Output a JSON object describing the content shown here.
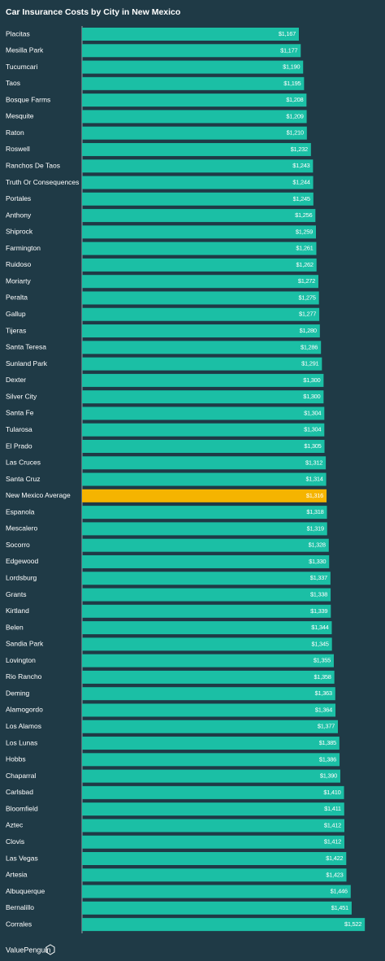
{
  "chart_data": {
    "type": "bar",
    "orientation": "horizontal",
    "title": "Car Insurance Costs by City in New Mexico",
    "footer": "ValuePenguin",
    "categories": [
      "Placitas",
      "Mesilla Park",
      "Tucumcari",
      "Taos",
      "Bosque Farms",
      "Mesquite",
      "Raton",
      "Roswell",
      "Ranchos De Taos",
      "Truth Or Consequences",
      "Portales",
      "Anthony",
      "Shiprock",
      "Farmington",
      "Ruidoso",
      "Moriarty",
      "Peralta",
      "Gallup",
      "Tijeras",
      "Santa Teresa",
      "Sunland Park",
      "Dexter",
      "Silver City",
      "Santa Fe",
      "Tularosa",
      "El Prado",
      "Las Cruces",
      "Santa Cruz",
      "New Mexico Average",
      "Espanola",
      "Mescalero",
      "Socorro",
      "Edgewood",
      "Lordsburg",
      "Grants",
      "Kirtland",
      "Belen",
      "Sandia Park",
      "Lovington",
      "Rio Rancho",
      "Deming",
      "Alamogordo",
      "Los Alamos",
      "Los Lunas",
      "Hobbs",
      "Chaparral",
      "Carlsbad",
      "Bloomfield",
      "Aztec",
      "Clovis",
      "Las Vegas",
      "Artesia",
      "Albuquerque",
      "Bernalillo",
      "Corrales"
    ],
    "values": [
      1167,
      1177,
      1190,
      1195,
      1208,
      1209,
      1210,
      1232,
      1243,
      1244,
      1245,
      1256,
      1259,
      1261,
      1262,
      1272,
      1275,
      1277,
      1280,
      1286,
      1291,
      1300,
      1300,
      1304,
      1304,
      1305,
      1312,
      1314,
      1316,
      1318,
      1319,
      1328,
      1330,
      1337,
      1338,
      1339,
      1344,
      1345,
      1355,
      1358,
      1363,
      1364,
      1377,
      1385,
      1386,
      1390,
      1410,
      1411,
      1412,
      1412,
      1422,
      1423,
      1446,
      1451,
      1522
    ],
    "value_labels": [
      "$1,167",
      "$1,177",
      "$1,190",
      "$1,195",
      "$1,208",
      "$1,209",
      "$1,210",
      "$1,232",
      "$1,243",
      "$1,244",
      "$1,245",
      "$1,256",
      "$1,259",
      "$1,261",
      "$1,262",
      "$1,272",
      "$1,275",
      "$1,277",
      "$1,280",
      "$1,286",
      "$1,291",
      "$1,300",
      "$1,300",
      "$1,304",
      "$1,304",
      "$1,305",
      "$1,312",
      "$1,314",
      "$1,316",
      "$1,318",
      "$1,319",
      "$1,328",
      "$1,330",
      "$1,337",
      "$1,338",
      "$1,339",
      "$1,344",
      "$1,345",
      "$1,355",
      "$1,358",
      "$1,363",
      "$1,364",
      "$1,377",
      "$1,385",
      "$1,386",
      "$1,390",
      "$1,410",
      "$1,411",
      "$1,412",
      "$1,412",
      "$1,422",
      "$1,423",
      "$1,446",
      "$1,451",
      "$1,522"
    ],
    "colors": [
      "#1bbfa5",
      "#1bbfa5",
      "#1bbfa5",
      "#1bbfa5",
      "#1bbfa5",
      "#1bbfa5",
      "#1bbfa5",
      "#1bbfa5",
      "#1bbfa5",
      "#1bbfa5",
      "#1bbfa5",
      "#1bbfa5",
      "#1bbfa5",
      "#1bbfa5",
      "#1bbfa5",
      "#1bbfa5",
      "#1bbfa5",
      "#1bbfa5",
      "#1bbfa5",
      "#1bbfa5",
      "#1bbfa5",
      "#1bbfa5",
      "#1bbfa5",
      "#1bbfa5",
      "#1bbfa5",
      "#1bbfa5",
      "#1bbfa5",
      "#1bbfa5",
      "#f5b400",
      "#1bbfa5",
      "#1bbfa5",
      "#1bbfa5",
      "#1bbfa5",
      "#1bbfa5",
      "#1bbfa5",
      "#1bbfa5",
      "#1bbfa5",
      "#1bbfa5",
      "#1bbfa5",
      "#1bbfa5",
      "#1bbfa5",
      "#1bbfa5",
      "#1bbfa5",
      "#1bbfa5",
      "#1bbfa5",
      "#1bbfa5",
      "#1bbfa5",
      "#1bbfa5",
      "#1bbfa5",
      "#1bbfa5",
      "#1bbfa5",
      "#1bbfa5",
      "#1bbfa5",
      "#1bbfa5",
      "#1bbfa5"
    ],
    "xlim": [
      0,
      1530
    ]
  }
}
